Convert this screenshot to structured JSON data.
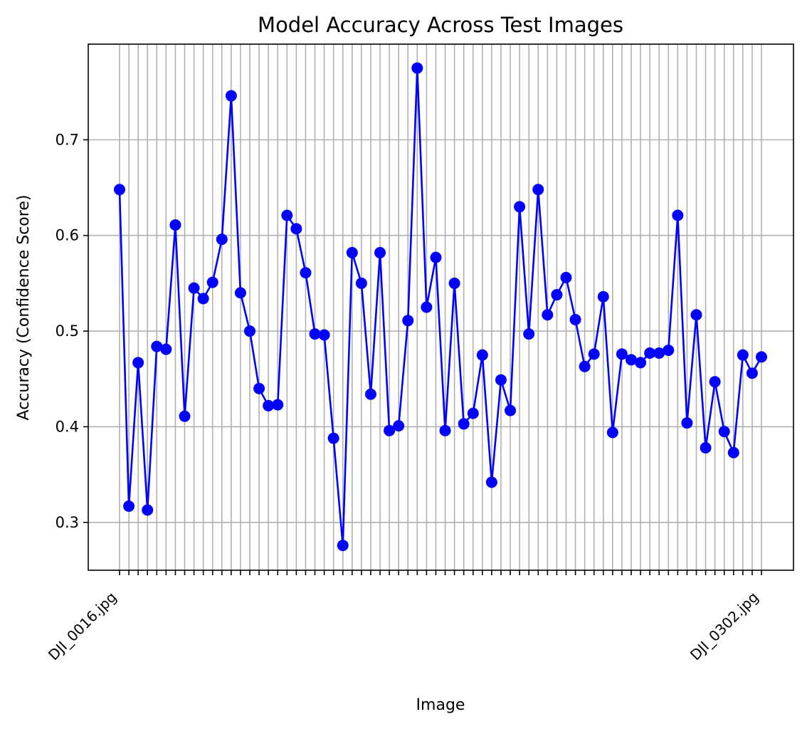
{
  "chart_data": {
    "type": "line",
    "title": "Model Accuracy Across Test Images",
    "xlabel": "Image",
    "ylabel": "Accuracy (Confidence Score)",
    "ylim": [
      0.25,
      0.8
    ],
    "yticks": [
      0.3,
      0.4,
      0.5,
      0.6,
      0.7
    ],
    "ytick_labels": [
      "0.3",
      "0.4",
      "0.5",
      "0.6",
      "0.7"
    ],
    "grid": true,
    "line_color": "#0000ff",
    "marker_color": "#0000ff",
    "x_labels_first": "DJI_0016.jpg",
    "x_labels_last": "DJI_0302.jpg",
    "values": [
      0.648,
      0.317,
      0.467,
      0.313,
      0.484,
      0.481,
      0.611,
      0.411,
      0.545,
      0.534,
      0.551,
      0.596,
      0.746,
      0.54,
      0.5,
      0.44,
      0.422,
      0.423,
      0.621,
      0.607,
      0.561,
      0.497,
      0.496,
      0.388,
      0.276,
      0.582,
      0.55,
      0.434,
      0.582,
      0.396,
      0.401,
      0.511,
      0.775,
      0.525,
      0.577,
      0.396,
      0.55,
      0.403,
      0.414,
      0.475,
      0.342,
      0.449,
      0.417,
      0.63,
      0.497,
      0.648,
      0.517,
      0.538,
      0.556,
      0.512,
      0.463,
      0.476,
      0.536,
      0.394,
      0.476,
      0.47,
      0.467,
      0.477,
      0.477,
      0.48,
      0.621,
      0.404,
      0.517,
      0.378,
      0.447,
      0.395,
      0.373,
      0.475,
      0.456,
      0.473
    ]
  }
}
